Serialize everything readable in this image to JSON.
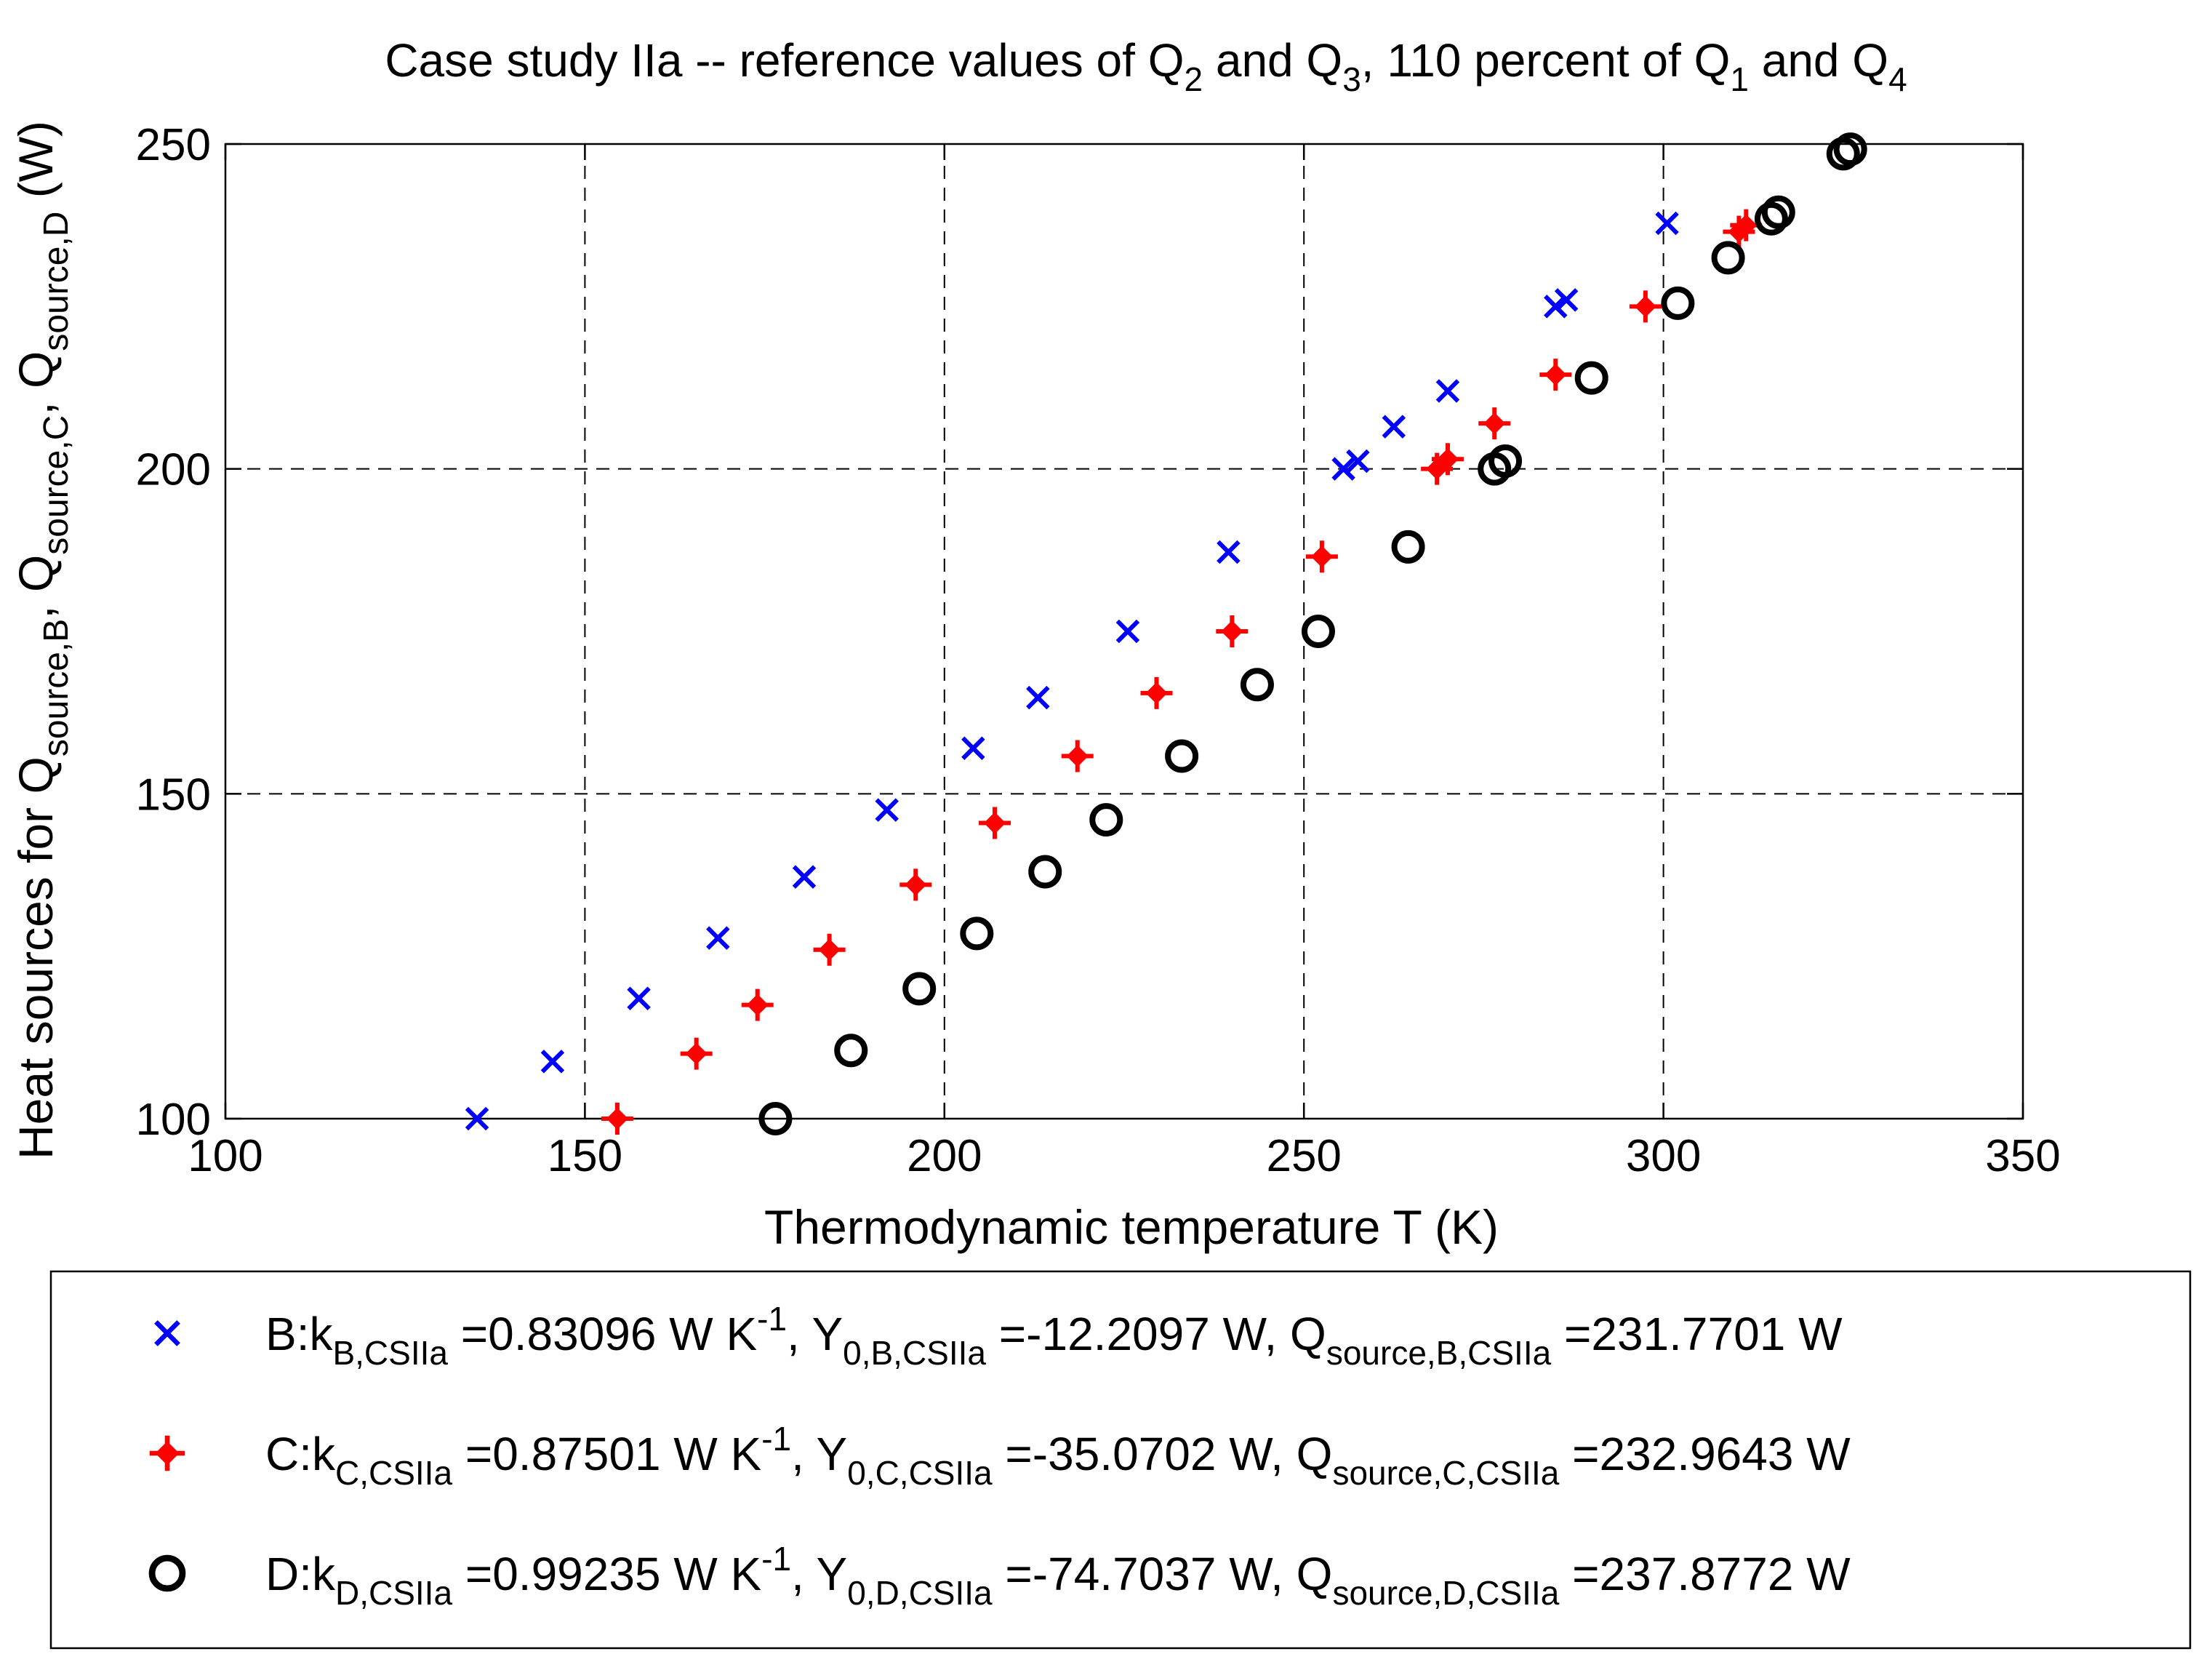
{
  "chart_data": {
    "type": "scatter",
    "title_parts": [
      {
        "t": "Case study IIa -- reference values of Q"
      },
      {
        "t": "2",
        "sub": true
      },
      {
        "t": " and Q"
      },
      {
        "t": "3",
        "sub": true
      },
      {
        "t": ", 110 percent of Q"
      },
      {
        "t": "1",
        "sub": true
      },
      {
        "t": " and Q"
      },
      {
        "t": "4",
        "sub": true
      }
    ],
    "xlabel": "Thermodynamic temperature T (K)",
    "ylabel_parts": [
      {
        "t": "Heat sources for Q"
      },
      {
        "t": "source,B",
        "sub": true
      },
      {
        "t": ", Q"
      },
      {
        "t": "source,C",
        "sub": true
      },
      {
        "t": ", Q"
      },
      {
        "t": "source,D",
        "sub": true
      },
      {
        "t": " (W)"
      }
    ],
    "xlim": [
      100,
      350
    ],
    "ylim": [
      100,
      250
    ],
    "xticks": [
      100,
      150,
      200,
      250,
      300,
      350
    ],
    "yticks": [
      100,
      150,
      200,
      250
    ],
    "grid": true,
    "legend_position": "bottom",
    "series": [
      {
        "name": "B",
        "marker": "x",
        "color": "#0000ff",
        "legend_parts": [
          {
            "t": "B:k"
          },
          {
            "t": "B,CSIIa",
            "sub": true
          },
          {
            "t": " =0.83096 W K"
          },
          {
            "t": "-1",
            "sup": true
          },
          {
            "t": ", Y"
          },
          {
            "t": "0,B,CSIIa",
            "sub": true
          },
          {
            "t": " =-12.2097 W, Q"
          },
          {
            "t": "source,B,CSIIa",
            "sub": true
          },
          {
            "t": " =231.7701 W"
          }
        ],
        "x": [
          135,
          145.5,
          157.5,
          168.5,
          180.5,
          192,
          204,
          213,
          225.5,
          239.5,
          255.5,
          257.5,
          262.5,
          270,
          285,
          286.5,
          300.5
        ],
        "y": [
          100,
          108.8,
          118.5,
          127.8,
          137.2,
          147.5,
          157,
          164.8,
          175,
          187.2,
          200,
          201.2,
          206.5,
          212,
          225,
          226,
          237.8
        ]
      },
      {
        "name": "C",
        "marker": "diamond-plus",
        "color": "#ff0000",
        "legend_parts": [
          {
            "t": "C:k"
          },
          {
            "t": "C,CSIIa",
            "sub": true
          },
          {
            "t": " =0.87501 W K"
          },
          {
            "t": "-1",
            "sup": true
          },
          {
            "t": ", Y"
          },
          {
            "t": "0,C,CSIIa",
            "sub": true
          },
          {
            "t": " =-35.0702 W, Q"
          },
          {
            "t": "source,C,CSIIa",
            "sub": true
          },
          {
            "t": " =232.9643 W"
          }
        ],
        "x": [
          154.5,
          165.5,
          174,
          184,
          196,
          207,
          218.5,
          229.5,
          240,
          252.5,
          268.5,
          270,
          276.5,
          285,
          297.5,
          310.5,
          311.5
        ],
        "y": [
          100,
          110,
          117.5,
          126,
          136,
          145.5,
          155.8,
          165.5,
          175,
          186.5,
          200,
          201.5,
          207,
          214.5,
          225,
          236.5,
          237.5
        ]
      },
      {
        "name": "D",
        "marker": "circle",
        "color": "#000000",
        "legend_parts": [
          {
            "t": "D:k"
          },
          {
            "t": "D,CSIIa",
            "sub": true
          },
          {
            "t": " =0.99235 W K"
          },
          {
            "t": "-1",
            "sup": true
          },
          {
            "t": ", Y"
          },
          {
            "t": "0,D,CSIIa",
            "sub": true
          },
          {
            "t": " =-74.7037 W, Q"
          },
          {
            "t": "source,D,CSIIa",
            "sub": true
          },
          {
            "t": " =237.8772 W"
          }
        ],
        "x": [
          176.5,
          187,
          196.5,
          204.5,
          214,
          222.5,
          233,
          243.5,
          252,
          264.5,
          276.5,
          278,
          290,
          302,
          309,
          315,
          316,
          325,
          326
        ],
        "y": [
          100,
          110.5,
          120,
          128.5,
          138,
          146,
          155.8,
          166.8,
          175,
          188,
          200,
          201.2,
          214,
          225.5,
          232.5,
          238.5,
          239.5,
          248.5,
          249.2
        ]
      }
    ]
  }
}
